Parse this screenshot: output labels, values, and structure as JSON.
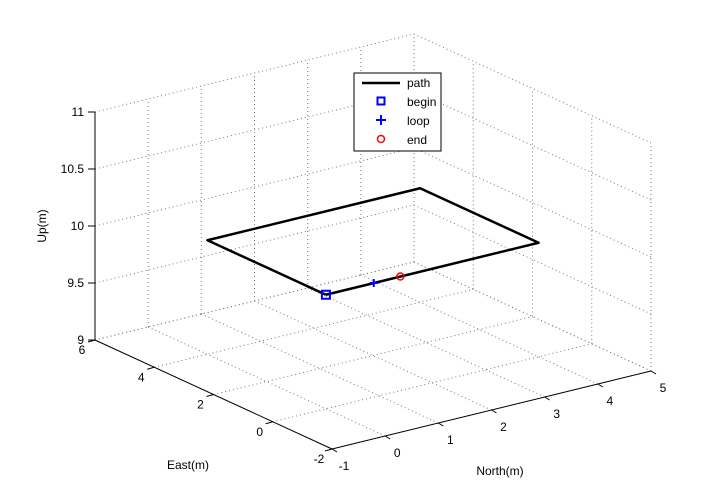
{
  "chart_data": {
    "type": "line3d",
    "title": "",
    "xlabel": "North(m)",
    "ylabel": "East(m)",
    "zlabel": "Up(m)",
    "xlim": [
      -1,
      5
    ],
    "ylim": [
      -2,
      6
    ],
    "zlim": [
      9,
      11
    ],
    "x_ticks": [
      -1,
      0,
      1,
      2,
      3,
      4,
      5
    ],
    "y_ticks": [
      -2,
      0,
      2,
      4,
      6
    ],
    "z_ticks": [
      9,
      9.5,
      10,
      10.5,
      11
    ],
    "z_tick_labels": [
      "9",
      "9.5",
      "10",
      "10.5",
      "11"
    ],
    "grid": true,
    "legend_position": "top-center",
    "series": [
      {
        "name": "path",
        "color": "#000000",
        "style": "line",
        "x": [
          0,
          4,
          4,
          0,
          0
        ],
        "y": [
          0,
          0,
          4,
          4,
          0
        ],
        "z": [
          10,
          10,
          10,
          10,
          10
        ]
      }
    ],
    "markers": [
      {
        "name": "begin",
        "shape": "square",
        "color": "#0000ff",
        "x": 0,
        "y": 0,
        "z": 10
      },
      {
        "name": "loop",
        "shape": "plus",
        "color": "#0000ff",
        "x": 0.9,
        "y": 0,
        "z": 10
      },
      {
        "name": "end",
        "shape": "circle",
        "color": "#ff0000",
        "x": 1.4,
        "y": 0,
        "z": 10
      }
    ]
  }
}
